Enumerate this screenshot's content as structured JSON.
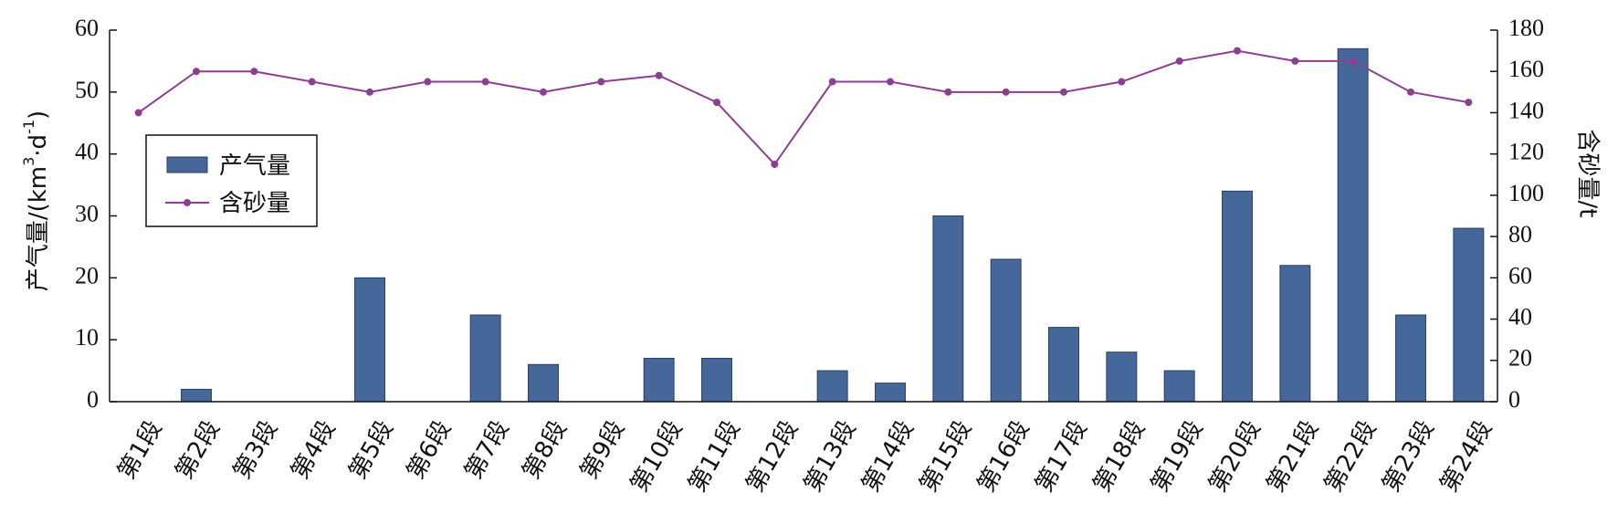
{
  "chart_data": {
    "type": "bar",
    "categories": [
      "第1段",
      "第2段",
      "第3段",
      "第4段",
      "第5段",
      "第6段",
      "第7段",
      "第8段",
      "第9段",
      "第10段",
      "第11段",
      "第12段",
      "第13段",
      "第14段",
      "第15段",
      "第16段",
      "第17段",
      "第18段",
      "第19段",
      "第20段",
      "第21段",
      "第22段",
      "第23段",
      "第24段"
    ],
    "series": [
      {
        "name": "产气量",
        "type": "bar",
        "axis": "left",
        "color": "#46679a",
        "values": [
          0,
          2,
          0,
          0,
          20,
          0,
          14,
          6,
          0,
          7,
          7,
          0,
          5,
          3,
          30,
          23,
          12,
          8,
          5,
          34,
          22,
          57,
          14,
          28
        ]
      },
      {
        "name": "含砂量",
        "type": "line",
        "axis": "right",
        "color": "#8b3f8e",
        "values": [
          140,
          160,
          160,
          155,
          150,
          155,
          155,
          150,
          155,
          158,
          145,
          115,
          155,
          155,
          150,
          150,
          150,
          155,
          165,
          170,
          165,
          165,
          150,
          145
        ]
      }
    ],
    "y_left": {
      "label_main": "产气量/(km",
      "label_sup1": "3",
      "label_mid": "·d",
      "label_sup2": "-1",
      "label_end": ")",
      "lim": [
        0,
        60
      ],
      "ticks": [
        "0",
        "10",
        "20",
        "30",
        "40",
        "50",
        "60"
      ]
    },
    "y_right": {
      "label": "含砂量/t",
      "lim": [
        0,
        180
      ],
      "ticks": [
        "0",
        "20",
        "40",
        "60",
        "80",
        "100",
        "120",
        "140",
        "160",
        "180"
      ]
    },
    "legend": {
      "position": "left",
      "items": [
        "产气量",
        "含砂量"
      ]
    },
    "grid": false
  }
}
